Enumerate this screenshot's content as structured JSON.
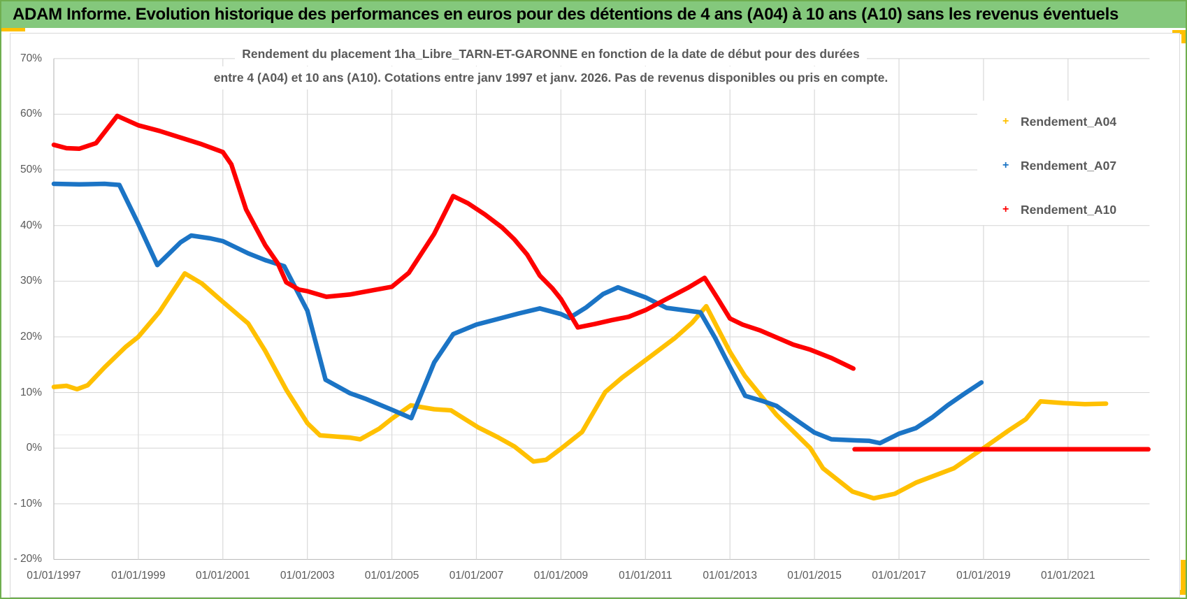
{
  "header": {
    "title": "ADAM Informe. Evolution historique des performances en euros pour des détentions de 4 ans (A04) à 10 ans (A10) sans les revenus éventuels",
    "bar_color": "#84C87C",
    "accent_color": "#FFC000",
    "border_color": "#6FAE4F"
  },
  "chart_data": {
    "type": "line",
    "title_line1": "Rendement du placement 1ha_Libre_TARN-ET-GARONNE en fonction de la date de début pour des durées",
    "title_line2": "entre 4 (A04) et 10 ans (A10). Cotations entre janv 1997 et janv. 2026. Pas de revenus disponibles ou pris en compte.",
    "grid": true,
    "legend_position": "right-top",
    "colors": {
      "grid": "#D9D9D9",
      "axis": "#BFBFBF",
      "text": "#595959"
    },
    "x_axis": {
      "domain_years": [
        1997.0,
        2022.93
      ],
      "tick_years": [
        1997,
        1999,
        2001,
        2003,
        2005,
        2007,
        2009,
        2011,
        2013,
        2015,
        2017,
        2019,
        2021
      ],
      "tick_labels": [
        "01/01/1997",
        "01/01/1999",
        "01/01/2001",
        "01/01/2003",
        "01/01/2005",
        "01/01/2007",
        "01/01/2009",
        "01/01/2011",
        "01/01/2013",
        "01/01/2015",
        "01/01/2017",
        "01/01/2019",
        "01/01/2021"
      ]
    },
    "y_axis": {
      "unit": "%",
      "domain": [
        -20,
        70
      ],
      "tick_values": [
        70,
        60,
        50,
        40,
        30,
        20,
        10,
        0,
        -10,
        -20
      ],
      "tick_labels": [
        "70%",
        "60%",
        "50%",
        "40%",
        "30%",
        "20%",
        "10%",
        "0%",
        "- 10%",
        "- 20%"
      ]
    },
    "unlabeled_faint_hline_percent": 2.4,
    "series": [
      {
        "name": "Rendement_A04",
        "color": "#FFC000",
        "marker": "+",
        "segments": [
          [
            [
              1997.0,
              11.0
            ],
            [
              1997.3,
              11.2
            ],
            [
              1997.55,
              10.6
            ],
            [
              1997.8,
              11.3
            ],
            [
              1998.2,
              14.5
            ],
            [
              1998.7,
              18.2
            ],
            [
              1999.0,
              20.0
            ],
            [
              1999.5,
              24.5
            ],
            [
              2000.1,
              31.4
            ],
            [
              2000.5,
              29.6
            ],
            [
              2001.0,
              26.3
            ],
            [
              2001.6,
              22.4
            ],
            [
              2002.0,
              17.5
            ],
            [
              2002.5,
              10.5
            ],
            [
              2003.0,
              4.5
            ],
            [
              2003.3,
              2.3
            ],
            [
              2004.0,
              1.9
            ],
            [
              2004.25,
              1.6
            ],
            [
              2004.7,
              3.5
            ],
            [
              2005.0,
              5.3
            ],
            [
              2005.45,
              7.7
            ],
            [
              2006.0,
              7.0
            ],
            [
              2006.4,
              6.8
            ],
            [
              2007.05,
              3.7
            ],
            [
              2007.5,
              2.0
            ],
            [
              2007.9,
              0.3
            ],
            [
              2008.35,
              -2.4
            ],
            [
              2008.65,
              -2.1
            ],
            [
              2009.0,
              -0.1
            ],
            [
              2009.5,
              2.9
            ],
            [
              2010.05,
              10.1
            ],
            [
              2010.45,
              12.7
            ],
            [
              2011.0,
              15.8
            ],
            [
              2011.7,
              19.8
            ],
            [
              2012.1,
              22.5
            ],
            [
              2012.44,
              25.5
            ],
            [
              2013.0,
              17.3
            ],
            [
              2013.35,
              13.0
            ],
            [
              2014.1,
              6.0
            ],
            [
              2014.9,
              0.0
            ],
            [
              2015.2,
              -3.6
            ],
            [
              2015.9,
              -7.8
            ],
            [
              2016.4,
              -9.0
            ],
            [
              2016.9,
              -8.2
            ],
            [
              2017.4,
              -6.2
            ],
            [
              2018.3,
              -3.6
            ],
            [
              2019.0,
              0.0
            ],
            [
              2019.6,
              3.2
            ],
            [
              2020.0,
              5.2
            ],
            [
              2020.35,
              8.4
            ],
            [
              2020.9,
              8.1
            ],
            [
              2021.4,
              7.9
            ],
            [
              2021.9,
              8.0
            ]
          ]
        ]
      },
      {
        "name": "Rendement_A07",
        "color": "#1B74C5",
        "marker": "+",
        "segments": [
          [
            [
              1997.0,
              47.5
            ],
            [
              1997.6,
              47.4
            ],
            [
              1998.2,
              47.5
            ],
            [
              1998.55,
              47.3
            ],
            [
              1999.0,
              40.3
            ],
            [
              1999.45,
              32.9
            ],
            [
              2000.0,
              37.0
            ],
            [
              2000.25,
              38.2
            ],
            [
              2000.7,
              37.7
            ],
            [
              2001.0,
              37.2
            ],
            [
              2001.6,
              35.0
            ],
            [
              2002.0,
              33.8
            ],
            [
              2002.45,
              32.7
            ],
            [
              2003.0,
              24.7
            ],
            [
              2003.43,
              12.3
            ],
            [
              2004.0,
              9.9
            ],
            [
              2004.4,
              8.8
            ],
            [
              2005.0,
              6.9
            ],
            [
              2005.46,
              5.4
            ],
            [
              2006.0,
              15.4
            ],
            [
              2006.45,
              20.5
            ],
            [
              2007.0,
              22.2
            ],
            [
              2007.5,
              23.2
            ],
            [
              2008.0,
              24.2
            ],
            [
              2008.5,
              25.1
            ],
            [
              2009.0,
              24.1
            ],
            [
              2009.2,
              23.4
            ],
            [
              2009.6,
              25.3
            ],
            [
              2010.0,
              27.7
            ],
            [
              2010.35,
              28.9
            ],
            [
              2011.0,
              27.1
            ],
            [
              2011.5,
              25.2
            ],
            [
              2012.0,
              24.7
            ],
            [
              2012.3,
              24.4
            ],
            [
              2012.65,
              19.8
            ],
            [
              2013.0,
              14.6
            ],
            [
              2013.36,
              9.4
            ],
            [
              2013.8,
              8.4
            ],
            [
              2014.1,
              7.6
            ],
            [
              2014.6,
              4.9
            ],
            [
              2015.0,
              2.8
            ],
            [
              2015.4,
              1.6
            ],
            [
              2016.0,
              1.4
            ],
            [
              2016.3,
              1.3
            ],
            [
              2016.55,
              0.9
            ],
            [
              2017.0,
              2.6
            ],
            [
              2017.4,
              3.6
            ],
            [
              2017.8,
              5.6
            ],
            [
              2018.15,
              7.7
            ],
            [
              2018.55,
              9.8
            ],
            [
              2018.95,
              11.8
            ]
          ]
        ]
      },
      {
        "name": "Rendement_A10",
        "color": "#FE0000",
        "marker": "+",
        "segments": [
          [
            [
              1997.0,
              54.5
            ],
            [
              1997.3,
              53.9
            ],
            [
              1997.6,
              53.8
            ],
            [
              1998.0,
              54.8
            ],
            [
              1998.5,
              59.7
            ],
            [
              1999.0,
              58.0
            ],
            [
              1999.5,
              57.0
            ],
            [
              2000.0,
              55.8
            ],
            [
              2000.5,
              54.6
            ],
            [
              2001.0,
              53.2
            ],
            [
              2001.2,
              51.0
            ],
            [
              2001.55,
              42.9
            ],
            [
              2002.0,
              36.5
            ],
            [
              2002.3,
              33.2
            ],
            [
              2002.5,
              29.8
            ],
            [
              2002.8,
              28.5
            ],
            [
              2003.0,
              28.2
            ],
            [
              2003.45,
              27.2
            ],
            [
              2004.0,
              27.6
            ],
            [
              2004.5,
              28.3
            ],
            [
              2005.0,
              29.0
            ],
            [
              2005.4,
              31.5
            ],
            [
              2006.0,
              38.5
            ],
            [
              2006.45,
              45.3
            ],
            [
              2006.8,
              44.0
            ],
            [
              2007.2,
              42.0
            ],
            [
              2007.6,
              39.7
            ],
            [
              2007.9,
              37.5
            ],
            [
              2008.2,
              34.8
            ],
            [
              2008.5,
              31.0
            ],
            [
              2008.8,
              28.7
            ],
            [
              2009.0,
              26.8
            ],
            [
              2009.4,
              21.7
            ],
            [
              2009.8,
              22.3
            ],
            [
              2010.2,
              23.0
            ],
            [
              2010.6,
              23.6
            ],
            [
              2011.0,
              24.8
            ],
            [
              2011.5,
              26.8
            ],
            [
              2012.0,
              28.8
            ],
            [
              2012.4,
              30.6
            ],
            [
              2012.7,
              27.0
            ],
            [
              2013.0,
              23.3
            ],
            [
              2013.3,
              22.2
            ],
            [
              2013.7,
              21.2
            ],
            [
              2014.1,
              19.9
            ],
            [
              2014.5,
              18.6
            ],
            [
              2014.9,
              17.7
            ],
            [
              2015.4,
              16.2
            ],
            [
              2015.92,
              14.3
            ]
          ],
          [
            [
              2015.95,
              -0.2
            ],
            [
              2022.9,
              -0.2
            ]
          ]
        ]
      }
    ]
  }
}
